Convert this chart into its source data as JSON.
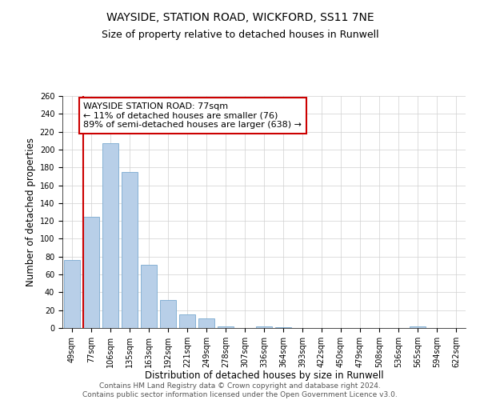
{
  "title": "WAYSIDE, STATION ROAD, WICKFORD, SS11 7NE",
  "subtitle": "Size of property relative to detached houses in Runwell",
  "xlabel": "Distribution of detached houses by size in Runwell",
  "ylabel": "Number of detached properties",
  "categories": [
    "49sqm",
    "77sqm",
    "106sqm",
    "135sqm",
    "163sqm",
    "192sqm",
    "221sqm",
    "249sqm",
    "278sqm",
    "307sqm",
    "336sqm",
    "364sqm",
    "393sqm",
    "422sqm",
    "450sqm",
    "479sqm",
    "508sqm",
    "536sqm",
    "565sqm",
    "594sqm",
    "622sqm"
  ],
  "values": [
    76,
    125,
    207,
    175,
    71,
    31,
    15,
    11,
    2,
    0,
    2,
    1,
    0,
    0,
    0,
    0,
    0,
    0,
    2,
    0,
    0
  ],
  "bar_color": "#b8cfe8",
  "bar_edge_color": "#7aaad0",
  "highlight_bar_index": 1,
  "highlight_color": "#cc0000",
  "annotation_box_text": "WAYSIDE STATION ROAD: 77sqm\n← 11% of detached houses are smaller (76)\n89% of semi-detached houses are larger (638) →",
  "annotation_box_color": "#ffffff",
  "annotation_box_edge_color": "#cc0000",
  "ylim": [
    0,
    260
  ],
  "yticks": [
    0,
    20,
    40,
    60,
    80,
    100,
    120,
    140,
    160,
    180,
    200,
    220,
    240,
    260
  ],
  "grid_color": "#d0d0d0",
  "background_color": "#ffffff",
  "footer_line1": "Contains HM Land Registry data © Crown copyright and database right 2024.",
  "footer_line2": "Contains public sector information licensed under the Open Government Licence v3.0.",
  "title_fontsize": 10,
  "subtitle_fontsize": 9,
  "xlabel_fontsize": 8.5,
  "ylabel_fontsize": 8.5,
  "tick_fontsize": 7,
  "annotation_fontsize": 8,
  "footer_fontsize": 6.5
}
